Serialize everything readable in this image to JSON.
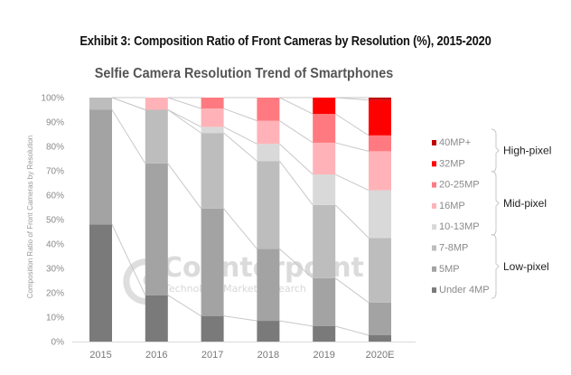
{
  "header": {
    "exhibit_title": "Exhibit 3: Composition Ratio of Front Cameras by Resolution (%), 2015-2020"
  },
  "watermark": {
    "brand": "Counterpoint",
    "tagline": "Technology Market Research"
  },
  "chart_data": {
    "type": "bar",
    "stacked": true,
    "percent_stacked": true,
    "title": "Selfie Camera Resolution Trend of Smartphones",
    "xlabel": "",
    "ylabel": "Composition Ratio of Front Cameras by Resolution",
    "ylim": [
      0,
      100
    ],
    "yticks": [
      "0%",
      "10%",
      "20%",
      "30%",
      "40%",
      "50%",
      "60%",
      "70%",
      "80%",
      "90%",
      "100%"
    ],
    "categories": [
      "2015",
      "2016",
      "2017",
      "2018",
      "2019",
      "2020E"
    ],
    "connector_lines": true,
    "legend_position": "right",
    "series": [
      {
        "name": "Under 4MP",
        "group": "Low-pixel",
        "color": "#7a7a7a",
        "values": [
          48,
          19,
          10.5,
          8.5,
          6.3,
          2.6
        ]
      },
      {
        "name": "5MP",
        "group": "Low-pixel",
        "color": "#a3a3a3",
        "values": [
          47,
          54,
          44,
          29.5,
          19.7,
          13.4
        ]
      },
      {
        "name": "7-8MP",
        "group": "Low-pixel",
        "color": "#bdbdbd",
        "values": [
          5,
          22,
          31,
          36,
          30,
          26.5
        ]
      },
      {
        "name": "10-13MP",
        "group": "Mid-pixel",
        "color": "#d9d9d9",
        "values": [
          0,
          0,
          2.5,
          7,
          12.5,
          19.5
        ]
      },
      {
        "name": "16MP",
        "group": "Mid-pixel",
        "color": "#ffb3b8",
        "values": [
          0,
          5,
          7.5,
          9.5,
          13,
          16
        ]
      },
      {
        "name": "20-25MP",
        "group": "Mid-pixel",
        "color": "#ff7a80",
        "values": [
          0,
          0,
          4.5,
          9.5,
          11.8,
          6.5
        ]
      },
      {
        "name": "32MP",
        "group": "High-pixel",
        "color": "#ff0000",
        "values": [
          0,
          0,
          0,
          0,
          6.7,
          14.5
        ]
      },
      {
        "name": "40MP+",
        "group": "High-pixel",
        "color": "#c00000",
        "values": [
          0,
          0,
          0,
          0,
          0,
          1
        ]
      }
    ],
    "legend_groups": [
      {
        "label": "High-pixel",
        "members": [
          "40MP+",
          "32MP"
        ]
      },
      {
        "label": "Mid-pixel",
        "members": [
          "20-25MP",
          "16MP",
          "10-13MP"
        ]
      },
      {
        "label": "Low-pixel",
        "members": [
          "7-8MP",
          "5MP",
          "Under 4MP"
        ]
      }
    ]
  }
}
